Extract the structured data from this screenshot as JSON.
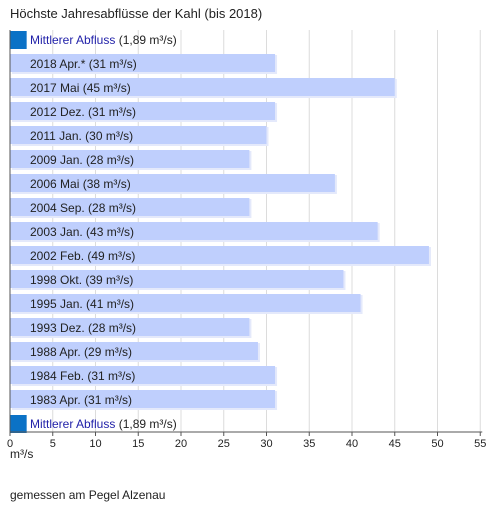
{
  "title": "Höchste Jahresabflüsse der Kahl (bis 2018)",
  "chart_data": {
    "type": "bar",
    "orientation": "horizontal",
    "categories": [
      "2018 Apr.* (31 m³/s)",
      "2017 Mai (45 m³/s)",
      "2012 Dez. (31 m³/s)",
      "2011 Jan. (30 m³/s)",
      "2009 Jan. (28 m³/s)",
      "2006 Mai (38 m³/s)",
      "2004 Sep. (28 m³/s)",
      "2003 Jan. (43 m³/s)",
      "2002 Feb. (49 m³/s)",
      "1998 Okt. (39 m³/s)",
      "1995 Jan. (41 m³/s)",
      "1993 Dez. (28 m³/s)",
      "1988 Apr. (29 m³/s)",
      "1984 Feb. (31 m³/s)",
      "1983 Apr. (31 m³/s)"
    ],
    "values": [
      31,
      45,
      31,
      30,
      28,
      38,
      28,
      43,
      49,
      39,
      41,
      28,
      29,
      31,
      31
    ],
    "reference": {
      "label": "Mittlerer Abfluss",
      "value_label": "(1,89 m³/s)",
      "value": 1.89
    },
    "xlim": [
      0,
      56
    ],
    "xticks": [
      0,
      5,
      10,
      15,
      20,
      25,
      30,
      35,
      40,
      45,
      50,
      55
    ],
    "xlabel": "m³/s",
    "grid": true,
    "colors": {
      "bar": "#bfcffd",
      "bar_shadow": "#e4e9fb",
      "reference": "#0b72c6",
      "reference_text": "#1f1fa8",
      "grid": "#dcdcdc",
      "axis": "#555555"
    }
  },
  "footnote": "gemessen am Pegel Alzenau"
}
